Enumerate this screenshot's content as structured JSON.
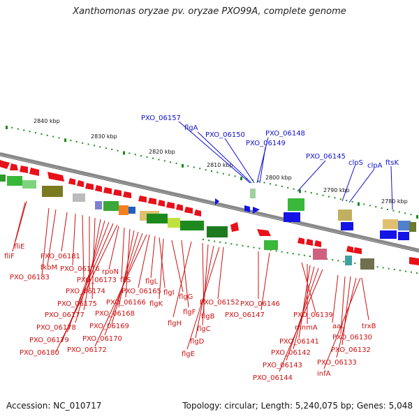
{
  "title": "Xanthomonas oryzae pv. oryzae PXO99A, complete genome",
  "footer": {
    "accession": "Accession: NC_010717",
    "stats": "Topology: circular; Length: 5,240,075 bp; Genes: 5,048"
  },
  "ticks": [
    "2840 kbp",
    "2830 kbp",
    "2820 kbp",
    "2810 kbp",
    "2800 kbp",
    "2790 kbp",
    "2780 kbp"
  ],
  "labels_top": [
    "PXO_06157",
    "flgA",
    "PXO_06150",
    "PXO_06148",
    "PXO_06149",
    "PXO_06145",
    "clpS",
    "clpA",
    "ftsK"
  ],
  "labels_bottom": [
    "fliE",
    "fliF",
    "PXO_06181",
    "fkbM",
    "PXO_06183",
    "PXO_06176",
    "rpoN",
    "PXO_06173",
    "fliS",
    "PXO_06174",
    "PXO_06175",
    "PXO_06177",
    "PXO_06178",
    "PXO_06179",
    "PXO_06180",
    "PXO_06166",
    "PXO_06168",
    "PXO_06169",
    "PXO_06170",
    "PXO_06172",
    "PXO_06165",
    "flgL",
    "flgI",
    "flgK",
    "flgG",
    "flgF",
    "flgH",
    "flgB",
    "flgC",
    "flgD",
    "flgE",
    "PXO_06152",
    "PXO_06146",
    "PXO_06147",
    "PXO_06139",
    "mnmA",
    "PXO_06141",
    "PXO_06142",
    "PXO_06143",
    "PXO_06144",
    "aat",
    "trxB",
    "PXO_06130",
    "PXO_06132",
    "PXO_06133",
    "infA"
  ],
  "colors": {
    "forward_gene": "#e8101a",
    "reverse_gene": "#1414e6",
    "backbone": "#888888",
    "tick": "#1a8a1a",
    "top_label": "#1010cc",
    "bottom_label": "#cc1010"
  }
}
